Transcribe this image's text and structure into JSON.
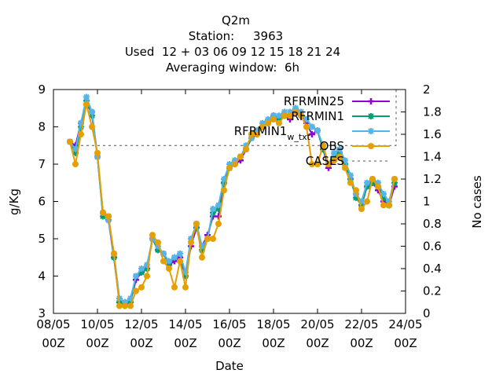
{
  "title_lines": [
    "Q2m",
    "Station:     3963",
    "Used  12 + 03 06 09 12 15 18 21 24",
    "Averaging window:  6h"
  ],
  "chart_data": {
    "type": "line",
    "title": "Q2m",
    "xlabel": "Date",
    "ylabel": "g/Kg",
    "y2label": "No cases",
    "x_unit": "days",
    "xlim": [
      0,
      16
    ],
    "ylim": [
      3,
      9
    ],
    "y2lim": [
      0,
      2
    ],
    "x_ticks": [
      {
        "x": 0,
        "l1": "08/05",
        "l2": "00Z"
      },
      {
        "x": 2,
        "l1": "10/05",
        "l2": "00Z"
      },
      {
        "x": 4,
        "l1": "12/05",
        "l2": "00Z"
      },
      {
        "x": 6,
        "l1": "14/05",
        "l2": "00Z"
      },
      {
        "x": 8,
        "l1": "16/05",
        "l2": "00Z"
      },
      {
        "x": 10,
        "l1": "18/05",
        "l2": "00Z"
      },
      {
        "x": 12,
        "l1": "20/05",
        "l2": "00Z"
      },
      {
        "x": 14,
        "l1": "22/05",
        "l2": "00Z"
      },
      {
        "x": 16,
        "l1": "24/05",
        "l2": "00Z"
      }
    ],
    "y_ticks": [
      3,
      4,
      5,
      6,
      7,
      8,
      9
    ],
    "y2_ticks": [
      0,
      0.2,
      0.4,
      0.6,
      0.8,
      1,
      1.2,
      1.4,
      1.6,
      1.8,
      2
    ],
    "grid": false,
    "legend_position": "top-right",
    "x": [
      0.75,
      1.0,
      1.25,
      1.5,
      1.75,
      2.0,
      2.25,
      2.5,
      2.75,
      3.0,
      3.25,
      3.5,
      3.75,
      4.0,
      4.25,
      4.5,
      4.75,
      5.0,
      5.25,
      5.5,
      5.75,
      6.0,
      6.25,
      6.5,
      6.75,
      7.0,
      7.25,
      7.5,
      7.75,
      8.0,
      8.25,
      8.5,
      8.75,
      9.0,
      9.25,
      9.5,
      9.75,
      10.0,
      10.25,
      10.5,
      10.75,
      11.0,
      11.25,
      11.5,
      11.75,
      12.0,
      12.25,
      12.5,
      12.75,
      13.0,
      13.25,
      13.5,
      13.75,
      14.0,
      14.25,
      14.5,
      14.75,
      15.0,
      15.25,
      15.5
    ],
    "series": [
      {
        "name": "RFRMIN25",
        "color": "#9400d3",
        "marker": "plus",
        "values": [
          7.6,
          7.5,
          8.1,
          8.6,
          8.4,
          7.2,
          5.7,
          5.5,
          4.5,
          3.3,
          3.2,
          3.3,
          3.9,
          4.1,
          4.2,
          5.0,
          4.7,
          4.6,
          4.3,
          4.4,
          4.5,
          4.0,
          4.8,
          5.3,
          4.8,
          5.1,
          5.6,
          5.6,
          6.5,
          6.9,
          7.0,
          7.1,
          7.4,
          7.7,
          7.8,
          8.0,
          8.1,
          8.3,
          8.2,
          8.3,
          8.2,
          8.4,
          8.3,
          8.1,
          7.8,
          7.9,
          7.4,
          6.9,
          7.1,
          7.3,
          7.0,
          6.6,
          6.2,
          5.9,
          6.4,
          6.5,
          6.3,
          6.0,
          5.9,
          6.4
        ]
      },
      {
        "name": "RFRMIN1",
        "color": "#009e73",
        "marker": "star",
        "values": [
          7.6,
          7.3,
          8.0,
          8.7,
          8.3,
          7.2,
          5.6,
          5.6,
          4.5,
          3.3,
          3.3,
          3.3,
          4.0,
          4.1,
          4.2,
          5.0,
          4.7,
          4.6,
          4.3,
          4.5,
          4.6,
          4.0,
          5.0,
          5.3,
          4.7,
          5.0,
          5.7,
          5.8,
          6.5,
          6.9,
          7.1,
          7.2,
          7.4,
          7.7,
          7.9,
          8.0,
          8.1,
          8.3,
          8.2,
          8.3,
          8.3,
          8.5,
          8.4,
          8.2,
          8.0,
          7.9,
          7.4,
          7.0,
          7.2,
          7.3,
          7.0,
          6.6,
          6.1,
          5.9,
          6.4,
          6.5,
          6.4,
          6.1,
          5.9,
          6.5
        ]
      },
      {
        "name": "RFRMIN1_w_txt",
        "label_main": "RFRMIN1",
        "label_sub": "w_txt",
        "color": "#56b4e9",
        "marker": "star",
        "values": [
          7.6,
          7.4,
          8.1,
          8.8,
          8.4,
          7.2,
          5.7,
          5.5,
          4.6,
          3.4,
          3.3,
          3.4,
          4.0,
          4.2,
          4.3,
          5.0,
          4.8,
          4.6,
          4.4,
          4.5,
          4.6,
          4.1,
          5.0,
          5.4,
          4.8,
          5.0,
          5.8,
          5.9,
          6.6,
          7.0,
          7.1,
          7.2,
          7.5,
          7.7,
          7.9,
          8.1,
          8.2,
          8.3,
          8.3,
          8.4,
          8.4,
          8.5,
          8.4,
          8.2,
          8.0,
          7.9,
          7.5,
          7.0,
          7.3,
          7.4,
          7.1,
          6.7,
          6.2,
          6.0,
          6.5,
          6.6,
          6.5,
          6.2,
          6.0,
          6.6
        ]
      },
      {
        "name": "OBS",
        "color": "#e69f00",
        "marker": "circle",
        "values": [
          7.6,
          7.0,
          7.8,
          8.6,
          8.0,
          7.3,
          5.7,
          5.6,
          4.6,
          3.2,
          3.2,
          3.2,
          3.6,
          3.7,
          4.0,
          5.1,
          4.9,
          4.4,
          4.2,
          3.7,
          4.4,
          3.7,
          4.9,
          5.4,
          4.5,
          5.0,
          5.0,
          5.4,
          6.3,
          6.9,
          7.0,
          7.2,
          7.4,
          7.8,
          7.8,
          8.0,
          8.1,
          8.2,
          8.1,
          8.3,
          8.3,
          8.4,
          8.3,
          8.0,
          7.0,
          7.0,
          7.5,
          7.0,
          7.1,
          7.2,
          6.9,
          6.5,
          6.3,
          5.8,
          6.0,
          6.6,
          6.4,
          5.9,
          5.9,
          6.6
        ]
      },
      {
        "name": "CASES",
        "color": "#555555",
        "dashed": true,
        "axis": "y2",
        "values": [
          1.5,
          1.5,
          1.5,
          1.5,
          1.5,
          1.5,
          1.5,
          1.5,
          1.5,
          1.5,
          1.5,
          1.5,
          1.5,
          1.5,
          1.5,
          1.5,
          1.5,
          1.5,
          1.5,
          1.5,
          1.5,
          1.5,
          1.5,
          1.5,
          1.5,
          1.5,
          1.5,
          1.5,
          1.5,
          1.5,
          1.5,
          1.5,
          1.5,
          1.5,
          1.5,
          1.5,
          1.5,
          1.5,
          1.5,
          1.5,
          1.5,
          1.5,
          1.5,
          1.5,
          1.5,
          1.5,
          1.5,
          1.5,
          1.5,
          1.5,
          1.5,
          1.5,
          1.5,
          1.5,
          1.5,
          1.5,
          1.5,
          1.5,
          1.5,
          1.5
        ]
      }
    ]
  }
}
